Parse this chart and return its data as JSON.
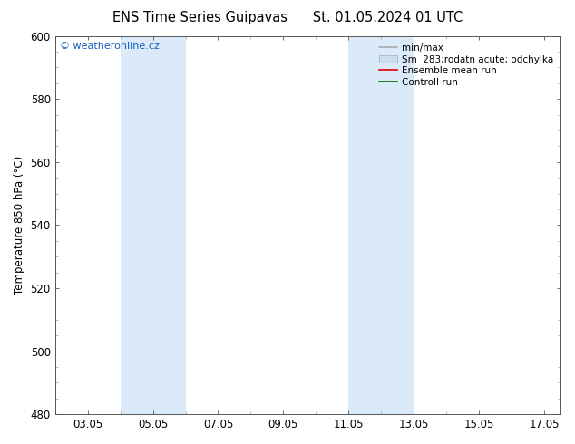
{
  "title_left": "ENS Time Series Guipavas",
  "title_right": "St. 01.05.2024 01 UTC",
  "ylabel": "Temperature 850 hPa (°C)",
  "ylim": [
    480,
    600
  ],
  "yticks": [
    480,
    500,
    520,
    540,
    560,
    580,
    600
  ],
  "xlim_min": 2.0,
  "xlim_max": 17.5,
  "xtick_positions": [
    3.0,
    5.0,
    7.0,
    9.0,
    11.0,
    13.0,
    15.0,
    17.0
  ],
  "xtick_labels": [
    "03.05",
    "05.05",
    "07.05",
    "09.05",
    "11.05",
    "13.05",
    "15.05",
    "17.05"
  ],
  "shaded_regions": [
    {
      "x_start": 4.0,
      "x_end": 6.0
    },
    {
      "x_start": 11.0,
      "x_end": 13.0
    }
  ],
  "shade_color": "#daeaf8",
  "watermark_text": "© weatheronline.cz",
  "watermark_color": "#1a5bbf",
  "legend_entries": [
    {
      "label": "min/max",
      "color": "#aaaaaa",
      "type": "line"
    },
    {
      "label": "Sm  283;rodatn acute; odchylka",
      "color": "#c8dff0",
      "type": "box"
    },
    {
      "label": "Ensemble mean run",
      "color": "#dd0000",
      "type": "line"
    },
    {
      "label": "Controll run",
      "color": "#006600",
      "type": "line"
    }
  ],
  "background_color": "#ffffff",
  "spine_color": "#555555",
  "title_fontsize": 10.5,
  "axis_fontsize": 8.5,
  "tick_fontsize": 8.5,
  "legend_fontsize": 7.5
}
